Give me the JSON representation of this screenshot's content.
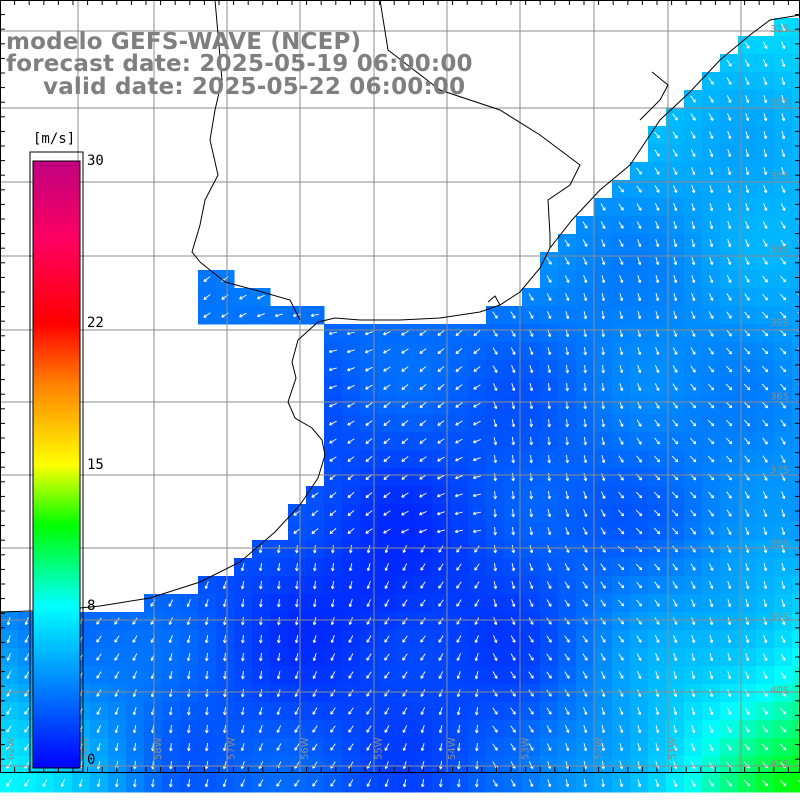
{
  "title": {
    "model": "modelo GEFS-WAVE (NCEP)",
    "forecast": "forecast date: 2025-05-19 06:00:00",
    "valid": "valid date: 2025-05-22 06:00:00"
  },
  "colorbar": {
    "unit": "[m/s]",
    "ticks": [
      "30",
      "22",
      "15",
      "8",
      "0"
    ],
    "tick_values": [
      30,
      22,
      15,
      8,
      0
    ],
    "range": [
      0,
      30
    ],
    "stops": [
      {
        "v": 0,
        "color": "#0000ff"
      },
      {
        "v": 4,
        "color": "#0080ff"
      },
      {
        "v": 8,
        "color": "#00ffff"
      },
      {
        "v": 12,
        "color": "#00ff00"
      },
      {
        "v": 15,
        "color": "#ffff00"
      },
      {
        "v": 19,
        "color": "#ff8000"
      },
      {
        "v": 22,
        "color": "#ff0000"
      },
      {
        "v": 26,
        "color": "#ff0060"
      },
      {
        "v": 30,
        "color": "#c00080"
      }
    ]
  },
  "map": {
    "lon_labels": [
      "62W",
      "59W",
      "58W",
      "57W",
      "56W",
      "55W",
      "54W",
      "53W",
      "52W",
      "51W"
    ],
    "lat_labels": [
      "31S",
      "32S",
      "33S",
      "34S",
      "35S",
      "36S",
      "37S",
      "38S",
      "39S",
      "40S",
      "41S"
    ],
    "colors": {
      "land": "#ffffff",
      "coast": "#000000",
      "grid": "#8c8c8c",
      "arrows": "#ffffff"
    }
  }
}
